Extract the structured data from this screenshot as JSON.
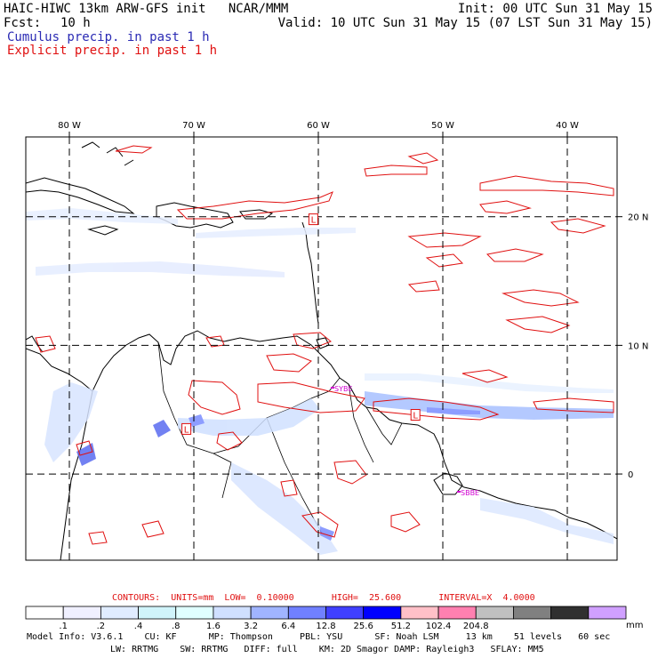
{
  "header": {
    "model_title": "HAIC-HIWC 13km ARW-GFS init   NCAR/MMM",
    "init_text": "Init: 00 UTC Sun 31 May 15",
    "fcst_label": "Fcst:",
    "fcst_value": "10 h",
    "valid_text": "Valid: 10 UTC Sun 31 May 15 (07 LST Sun 31 May 15)",
    "cumulus_legend": "Cumulus precip. in past 1 h",
    "explicit_legend": "Explicit precip. in past 1 h"
  },
  "colors": {
    "cumulus": "#2a2ab4",
    "explicit": "#e01010",
    "grid": "#000000",
    "contour": "#e01010",
    "low_marker_text": "#d000d0"
  },
  "map": {
    "lon_labels": [
      "80 W",
      "70 W",
      "60 W",
      "50 W",
      "40 W"
    ],
    "lat_labels": [
      "20 N",
      "10 N",
      "0"
    ],
    "lon_values": [
      -80,
      -70,
      -60,
      -50,
      -40
    ],
    "lat_values": [
      20,
      10,
      0
    ],
    "lon_range": [
      -83.5,
      -36
    ],
    "lat_range": [
      -6.7,
      26.2
    ],
    "low_labels": [
      "L",
      "L",
      "L"
    ],
    "low_marker_lonlat": [
      [
        -60.4,
        19.8
      ],
      [
        -70.6,
        3.5
      ],
      [
        -52.2,
        4.6
      ]
    ],
    "station_labels": [
      "SYBE",
      "SBBE"
    ]
  },
  "footer": {
    "contours_text": "CONTOURS:  UNITS=mm  LOW=  0.10000       HIGH=  25.600       INTERVAL=X  4.0000",
    "colorbar_colors": [
      "#ffffff",
      "#f0f0ff",
      "#e0ecff",
      "#d0f4fa",
      "#e0ffff",
      "#d0e0ff",
      "#a0b4ff",
      "#7080ff",
      "#4040ff",
      "#0000ff",
      "#ffc0c8",
      "#ff80b0",
      "#c0c0c0",
      "#808080",
      "#303030",
      "#d0a0ff"
    ],
    "colorbar_ticks": [
      ".1",
      ".2",
      ".4",
      ".8",
      "1.6",
      "3.2",
      "6.4",
      "12.8",
      "25.6",
      "51.2",
      "102.4",
      "204.8"
    ],
    "colorbar_units": "mm",
    "model_info_line1": "Model Info: V3.6.1    CU: KF      MP: Thompson     PBL: YSU      SF: Noah LSM     13 km    51 levels   60 sec",
    "model_info_line2": "LW: RRTMG    SW: RRTMG   DIFF: full    KM: 2D Smagor DAMP: Rayleigh3   SFLAY: MM5"
  }
}
